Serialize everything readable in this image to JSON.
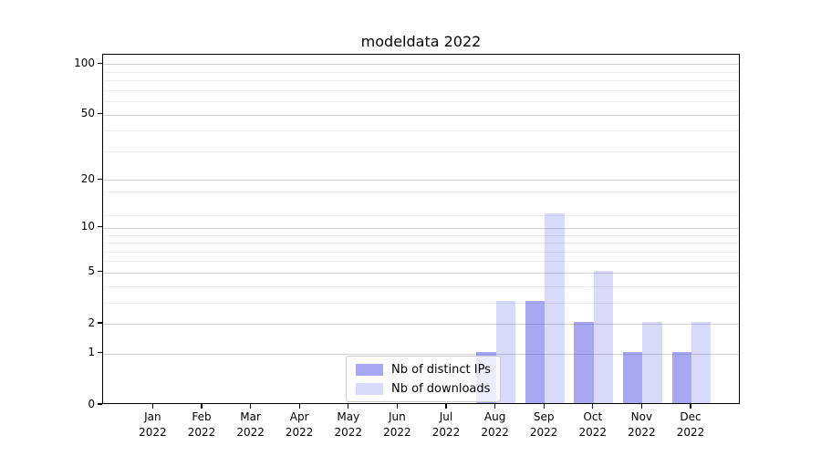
{
  "title": "modeldata 2022",
  "colors": {
    "distinct_ips_bar": "#aaaaf8",
    "downloads_bar": "#dbdbf9",
    "grid_major": "#d2d2d2",
    "grid_minor": "#ececec",
    "axis": "#000000"
  },
  "chart_data": {
    "type": "bar",
    "title": "modeldata 2022",
    "categories": [
      "Jan",
      "Feb",
      "Mar",
      "Apr",
      "May",
      "Jun",
      "Jul",
      "Aug",
      "Sep",
      "Oct",
      "Nov",
      "Dec"
    ],
    "year_label": "2022",
    "series": [
      {
        "name": "Nb of distinct IPs",
        "color": "#aaaaf8",
        "values": [
          0,
          0,
          0,
          0,
          0,
          0,
          0,
          1,
          3,
          2,
          1,
          1
        ]
      },
      {
        "name": "Nb of downloads",
        "color": "#dbdbf9",
        "values": [
          0,
          0,
          0,
          0,
          0,
          0,
          0,
          3,
          12,
          5,
          2,
          2
        ]
      }
    ],
    "yscale": "log1p",
    "ylim": [
      0,
      114
    ],
    "y_ticks": [
      0,
      1,
      2,
      5,
      10,
      20,
      50,
      100
    ],
    "y_minor_gridlines": [
      3,
      4,
      6,
      7,
      8,
      9,
      12,
      17,
      30,
      40,
      60,
      70,
      80,
      90
    ],
    "grid": true,
    "legend_position": "lower center",
    "bar_group_width_fraction": 0.8
  }
}
